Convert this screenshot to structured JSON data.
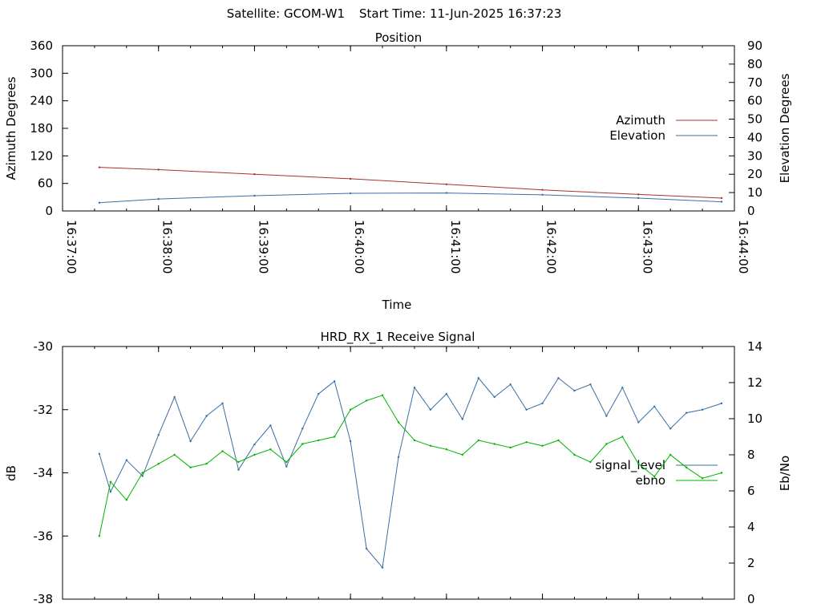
{
  "header": {
    "satellite": "Satellite: GCOM-W1",
    "start_time": "Start Time: 11-Jun-2025 16:37:23"
  },
  "colors": {
    "azimuth": "#a83232",
    "elevation": "#3a6ea5",
    "signal_level": "#3a6ea5",
    "ebno": "#00b400",
    "axis": "#000000"
  },
  "chart_data": [
    {
      "type": "line",
      "title": "Position",
      "xlabel": "Time",
      "ylabel": "Azimuth Degrees",
      "y2label": "Elevation Degrees",
      "x_type": "time",
      "xlim": [
        "16:37:00",
        "16:44:00"
      ],
      "x_ticks": [
        "16:37:00",
        "16:38:00",
        "16:39:00",
        "16:40:00",
        "16:41:00",
        "16:42:00",
        "16:43:00",
        "16:44:00"
      ],
      "ylim": [
        0,
        360
      ],
      "y_ticks": [
        0,
        60,
        120,
        180,
        240,
        300,
        360
      ],
      "y2lim": [
        0,
        90
      ],
      "y2_ticks": [
        0,
        10,
        20,
        30,
        40,
        50,
        60,
        70,
        80,
        90
      ],
      "legend_position": "right",
      "series": [
        {
          "name": "Azimuth",
          "axis": "y",
          "x": [
            "16:37:23",
            "16:38:00",
            "16:39:00",
            "16:40:00",
            "16:41:00",
            "16:42:00",
            "16:43:00",
            "16:43:52"
          ],
          "values": [
            95,
            90,
            80,
            70,
            58,
            46,
            36,
            28
          ]
        },
        {
          "name": "Elevation",
          "axis": "y2",
          "x": [
            "16:37:23",
            "16:38:00",
            "16:39:00",
            "16:40:00",
            "16:41:00",
            "16:42:00",
            "16:43:00",
            "16:43:52"
          ],
          "values": [
            4.5,
            6.5,
            8.3,
            9.6,
            9.8,
            8.8,
            7.0,
            5.0
          ]
        }
      ]
    },
    {
      "type": "line",
      "title": "HRD_RX_1 Receive Signal",
      "xlabel": "",
      "ylabel": "dB",
      "y2label": "Eb/No",
      "x_type": "time",
      "xlim": [
        "16:37:00",
        "16:44:00"
      ],
      "ylim": [
        -38,
        -30
      ],
      "y_ticks": [
        -38,
        -36,
        -34,
        -32,
        -30
      ],
      "y2lim": [
        0,
        14
      ],
      "y2_ticks": [
        0,
        2,
        4,
        6,
        8,
        10,
        12,
        14
      ],
      "legend_position": "right",
      "series": [
        {
          "name": "signal_level",
          "axis": "y",
          "x": [
            "16:37:23",
            "16:37:30",
            "16:37:40",
            "16:37:50",
            "16:38:00",
            "16:38:10",
            "16:38:20",
            "16:38:30",
            "16:38:40",
            "16:38:50",
            "16:39:00",
            "16:39:10",
            "16:39:20",
            "16:39:30",
            "16:39:40",
            "16:39:50",
            "16:40:00",
            "16:40:10",
            "16:40:20",
            "16:40:30",
            "16:40:40",
            "16:40:50",
            "16:41:00",
            "16:41:10",
            "16:41:20",
            "16:41:30",
            "16:41:40",
            "16:41:50",
            "16:42:00",
            "16:42:10",
            "16:42:20",
            "16:42:30",
            "16:42:40",
            "16:42:50",
            "16:43:00",
            "16:43:10",
            "16:43:20",
            "16:43:30",
            "16:43:40",
            "16:43:52"
          ],
          "values": [
            -33.4,
            -34.6,
            -33.6,
            -34.1,
            -32.8,
            -31.6,
            -33.0,
            -32.2,
            -31.8,
            -33.9,
            -33.1,
            -32.5,
            -33.8,
            -32.6,
            -31.5,
            -31.1,
            -33.0,
            -36.4,
            -37.0,
            -33.5,
            -31.3,
            -32.0,
            -31.5,
            -32.3,
            -31.0,
            -31.6,
            -31.2,
            -32.0,
            -31.8,
            -31.0,
            -31.4,
            -31.2,
            -32.2,
            -31.3,
            -32.4,
            -31.9,
            -32.6,
            -32.1,
            -32.0,
            -31.8
          ]
        },
        {
          "name": "ebno",
          "axis": "y2",
          "x": [
            "16:37:23",
            "16:37:30",
            "16:37:40",
            "16:37:50",
            "16:38:00",
            "16:38:10",
            "16:38:20",
            "16:38:30",
            "16:38:40",
            "16:38:50",
            "16:39:00",
            "16:39:10",
            "16:39:20",
            "16:39:30",
            "16:39:40",
            "16:39:50",
            "16:40:00",
            "16:40:10",
            "16:40:20",
            "16:40:30",
            "16:40:40",
            "16:40:50",
            "16:41:00",
            "16:41:10",
            "16:41:20",
            "16:41:30",
            "16:41:40",
            "16:41:50",
            "16:42:00",
            "16:42:10",
            "16:42:20",
            "16:42:30",
            "16:42:40",
            "16:42:50",
            "16:43:00",
            "16:43:10",
            "16:43:20",
            "16:43:30",
            "16:43:40",
            "16:43:52"
          ],
          "values": [
            3.5,
            6.5,
            5.5,
            7.0,
            7.5,
            8.0,
            7.3,
            7.5,
            8.2,
            7.6,
            8.0,
            8.3,
            7.6,
            8.6,
            8.8,
            9.0,
            10.5,
            11.0,
            11.3,
            9.8,
            8.8,
            8.5,
            8.3,
            8.0,
            8.8,
            8.6,
            8.4,
            8.7,
            8.5,
            8.8,
            8.0,
            7.6,
            8.6,
            9.0,
            7.5,
            6.8,
            8.0,
            7.3,
            6.7,
            7.0
          ]
        }
      ]
    }
  ]
}
